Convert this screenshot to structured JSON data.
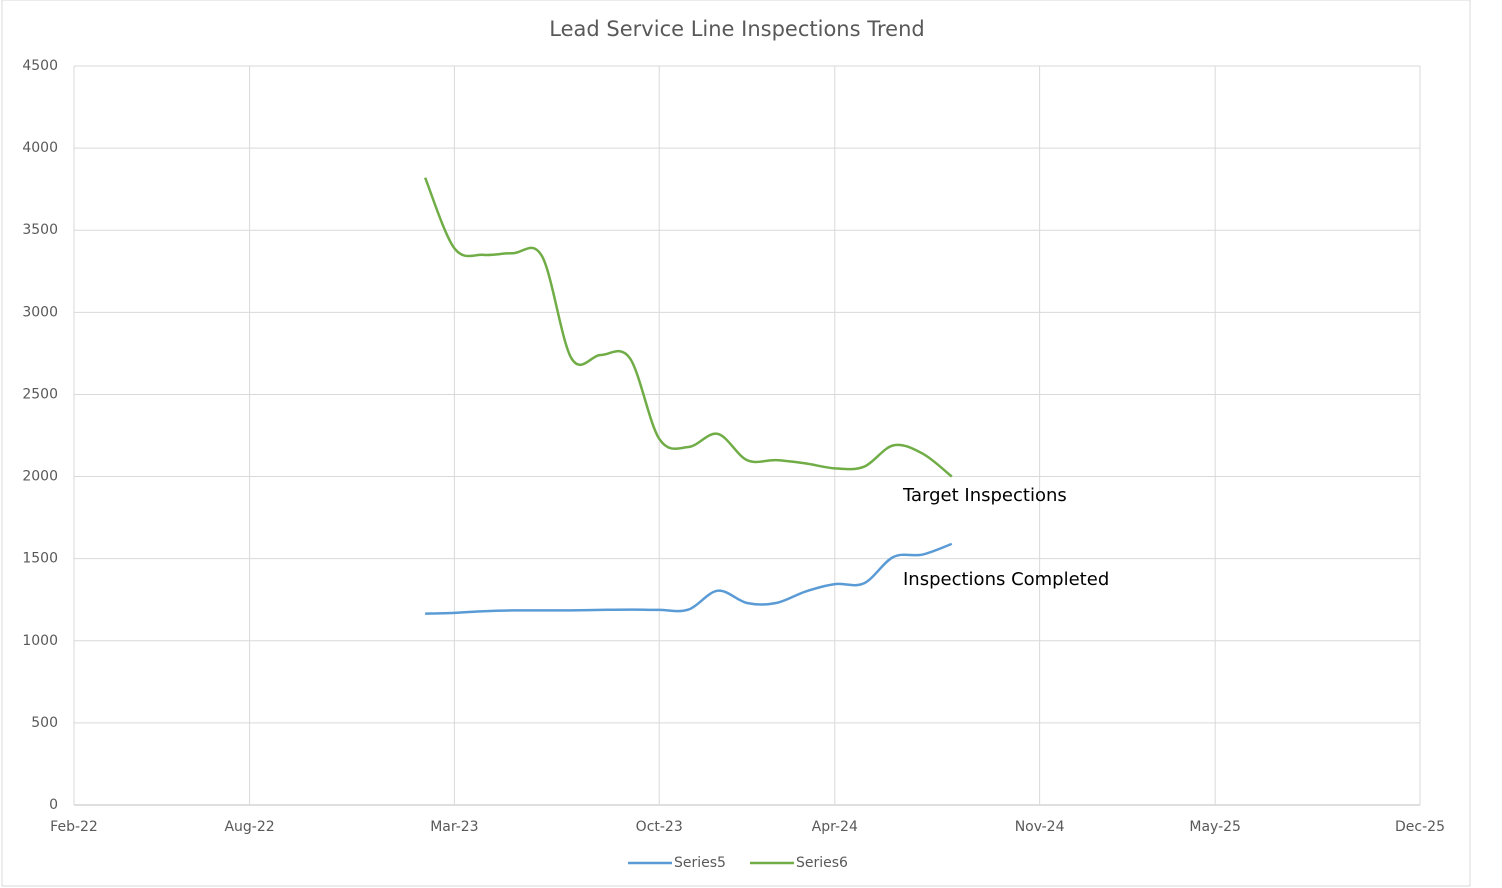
{
  "chart_data": {
    "type": "line",
    "title": "Lead Service Line Inspections Trend",
    "x": [
      "2023-02",
      "2023-03",
      "2023-04",
      "2023-05",
      "2023-06",
      "2023-07",
      "2023-08",
      "2023-09",
      "2023-10",
      "2023-11",
      "2023-12",
      "2024-01",
      "2024-02",
      "2024-03",
      "2024-04",
      "2024-05",
      "2024-06",
      "2024-07",
      "2024-08"
    ],
    "series": [
      {
        "name": "Series5",
        "color": "#5b9bd5",
        "values": [
          1165,
          1170,
          1180,
          1185,
          1185,
          1185,
          1188,
          1190,
          1188,
          1190,
          1305,
          1230,
          1230,
          1300,
          1345,
          1350,
          1510,
          1525,
          1590
        ]
      },
      {
        "name": "Series6",
        "color": "#70ad47",
        "values": [
          3820,
          3390,
          3350,
          3360,
          3340,
          2720,
          2740,
          2720,
          2230,
          2180,
          2260,
          2100,
          2100,
          2080,
          2050,
          2060,
          2190,
          2140,
          2000
        ]
      }
    ],
    "annotations": [
      "Target Inspections",
      "Inspections Completed"
    ],
    "xlim": [
      "2022-02",
      "2025-12"
    ],
    "xticks": [
      {
        "value": "2022-02",
        "label": "Feb-22"
      },
      {
        "value": "2022-08",
        "label": "Aug-22"
      },
      {
        "value": "2023-03",
        "label": "Mar-23"
      },
      {
        "value": "2023-10",
        "label": "Oct-23"
      },
      {
        "value": "2024-04",
        "label": "Apr-24"
      },
      {
        "value": "2024-11",
        "label": "Nov-24"
      },
      {
        "value": "2025-05",
        "label": "May-25"
      },
      {
        "value": "2025-12",
        "label": "Dec-25"
      }
    ],
    "ylim": [
      0,
      4500
    ],
    "yticks": [
      0,
      500,
      1000,
      1500,
      2000,
      2500,
      3000,
      3500,
      4000,
      4500
    ],
    "grid": true,
    "smooth": true,
    "legend": "bottom"
  }
}
